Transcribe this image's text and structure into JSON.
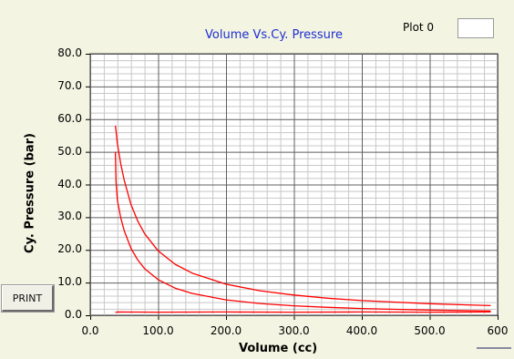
{
  "graph": {
    "title": "Volume Vs.Cy. Pressure",
    "legend_label": "Plot 0",
    "print_label": "PRINT"
  },
  "colors": {
    "background": "#f4f4e2",
    "plot_area": "#ffffff",
    "grid_major": "#5f5f5f",
    "grid_minor": "#c8c8c8",
    "series": "#ff0000",
    "title": "#1c2fd0"
  },
  "chart_data": {
    "type": "line",
    "title": "Volume Vs.Cy. Pressure",
    "xlabel": "Volume (cc)",
    "ylabel": "Cy. Pressure (bar)",
    "xlim": [
      0,
      600
    ],
    "ylim": [
      0,
      80
    ],
    "x_ticks": [
      "0.0",
      "100.0",
      "200.0",
      "300.0",
      "400.0",
      "500.0",
      "600"
    ],
    "y_ticks": [
      "0.0",
      "10.0",
      "20.0",
      "30.0",
      "40.0",
      "50.0",
      "60.0",
      "70.0",
      "80.0"
    ],
    "grid": true,
    "legend": "top-right",
    "series": [
      {
        "name": "Plot 0",
        "segments": [
          {
            "part": "expansion",
            "x": [
              37,
              38,
              40,
              45,
              50,
              60,
              70,
              80,
              100,
              125,
              150,
              200,
              250,
              300,
              350,
              400,
              450,
              500,
              550,
              590
            ],
            "y": [
              58,
              56.5,
              52.5,
              46.3,
              41.3,
              33.9,
              28.8,
              25.0,
              19.7,
              15.6,
              12.9,
              9.5,
              7.5,
              6.2,
              5.2,
              4.5,
              4.0,
              3.55,
              3.2,
              2.95
            ]
          },
          {
            "part": "compression",
            "x": [
              590,
              550,
              500,
              450,
              400,
              350,
              300,
              250,
              200,
              150,
              125,
              100,
              80,
              70,
              60,
              50,
              45,
              40,
              38,
              37
            ],
            "y": [
              1.3,
              1.42,
              1.6,
              1.8,
              2.07,
              2.42,
              2.9,
              3.6,
              4.7,
              6.7,
              8.3,
              10.9,
              14.3,
              16.9,
              20.5,
              25.9,
              29.8,
              35.2,
              41.0,
              50.0
            ]
          },
          {
            "part": "intake",
            "x": [
              37,
              40,
              100,
              200,
              300,
              400,
              500,
              590
            ],
            "y": [
              0.9,
              1.0,
              0.95,
              1.0,
              0.95,
              1.0,
              0.95,
              1.0
            ]
          }
        ]
      }
    ]
  }
}
